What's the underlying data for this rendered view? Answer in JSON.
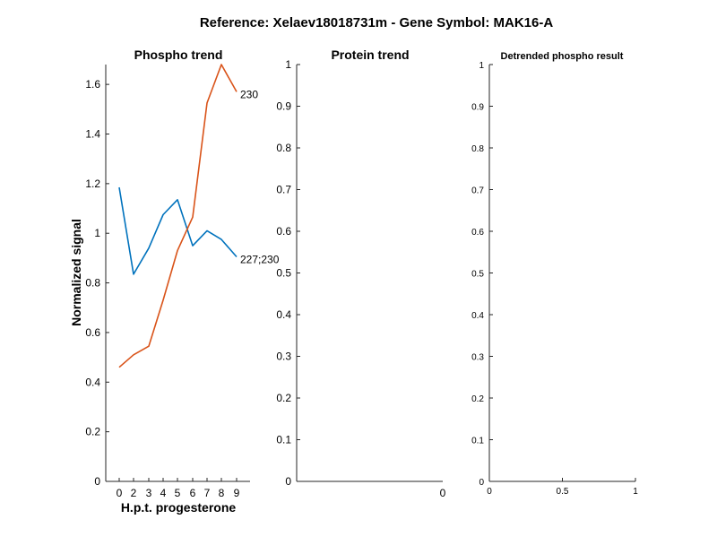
{
  "figure_title": "Reference:  Xelaev18018731m - Gene Symbol:  MAK16-A",
  "colors": {
    "series_blue": "#0072BD",
    "series_orange": "#D95319",
    "axis": "#262626"
  },
  "chart_data": [
    {
      "type": "line",
      "title": "Phospho trend",
      "xlabel": "H.p.t. progesterone",
      "ylabel": "Normalized signal",
      "x": [
        0,
        2,
        3,
        4,
        5,
        6,
        7,
        8,
        9
      ],
      "xticklabels": [
        "0",
        "2",
        "3",
        "4",
        "5",
        "6",
        "7",
        "8",
        "9"
      ],
      "yticks": [
        0,
        0.2,
        0.4,
        0.6,
        0.8,
        1,
        1.2,
        1.4,
        1.6
      ],
      "yticklabels": [
        "0",
        "0.2",
        "0.4",
        "0.6",
        "0.8",
        "1",
        "1.2",
        "1.4",
        "1.6"
      ],
      "ylim": [
        0,
        1.68
      ],
      "grid": false,
      "series": [
        {
          "name": "227;230",
          "color": "#0072BD",
          "values": [
            1.185,
            0.835,
            0.94,
            1.075,
            1.135,
            0.95,
            1.01,
            0.975,
            0.905
          ]
        },
        {
          "name": "230",
          "color": "#D95319",
          "values": [
            0.46,
            0.51,
            0.545,
            0.73,
            0.93,
            1.065,
            1.525,
            1.68,
            1.57
          ]
        }
      ]
    },
    {
      "type": "line",
      "title": "Protein trend",
      "xticklabels": [
        "0"
      ],
      "yticks": [
        0,
        0.1,
        0.2,
        0.3,
        0.4,
        0.5,
        0.6,
        0.7,
        0.8,
        0.9,
        1
      ],
      "yticklabels": [
        "0",
        "0.1",
        "0.2",
        "0.3",
        "0.4",
        "0.5",
        "0.6",
        "0.7",
        "0.8",
        "0.9",
        "1"
      ],
      "ylim": [
        0,
        1
      ],
      "grid": false,
      "series": []
    },
    {
      "type": "line",
      "title": "Detrended phospho result",
      "xticks": [
        0,
        0.5,
        1
      ],
      "xticklabels": [
        "0",
        "0.5",
        "1"
      ],
      "xlim": [
        0,
        1
      ],
      "yticks": [
        0,
        0.1,
        0.2,
        0.3,
        0.4,
        0.5,
        0.6,
        0.7,
        0.8,
        0.9,
        1
      ],
      "yticklabels": [
        "0",
        "0.1",
        "0.2",
        "0.3",
        "0.4",
        "0.5",
        "0.6",
        "0.7",
        "0.8",
        "0.9",
        "1"
      ],
      "ylim": [
        0,
        1
      ],
      "grid": false,
      "series": []
    }
  ]
}
